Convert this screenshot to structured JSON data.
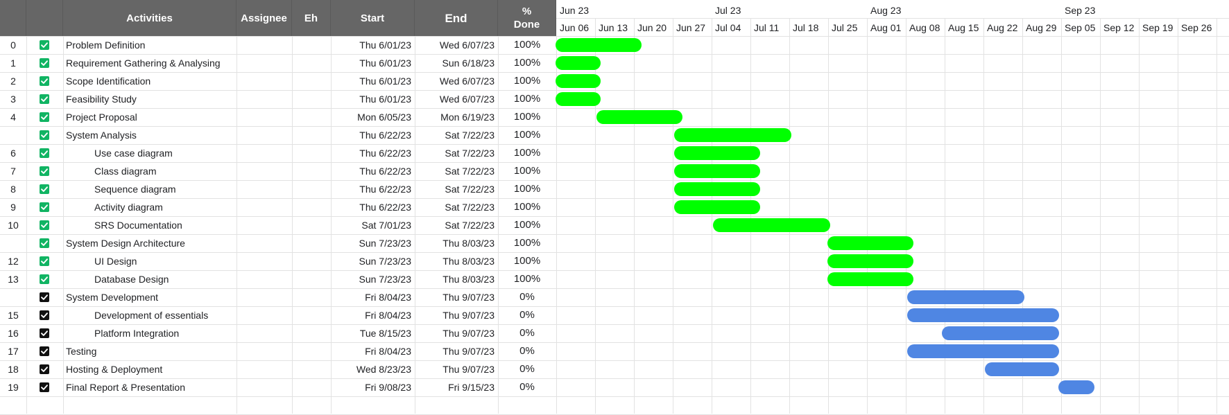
{
  "header": {
    "activities": "Activities",
    "assignee": "Assignee",
    "eh": "Eh",
    "start": "Start",
    "end": "End",
    "pct_done": "%\nDone"
  },
  "timeline": {
    "months": [
      "Jun 23",
      "Jul 23",
      "Aug 23",
      "Sep 23"
    ],
    "month_week_index": [
      0,
      4,
      8,
      13
    ],
    "weeks": [
      "Jun 06",
      "Jun 13",
      "Jun 20",
      "Jun 27",
      "Jul 04",
      "Jul 11",
      "Jul 18",
      "Jul 25",
      "Aug 01",
      "Aug 08",
      "Aug 15",
      "Aug 22",
      "Aug 29",
      "Sep 05",
      "Sep 12",
      "Sep 19",
      "Sep 26"
    ]
  },
  "colors": {
    "done_bar": "#00ff00",
    "todo_bar": "#4f86e3",
    "check_done": "#11b463",
    "check_todo": "#111111",
    "header_bg": "#666666"
  },
  "tasks": [
    {
      "no": "0",
      "name": "Problem Definition",
      "indent": false,
      "start": "Thu 6/01/23",
      "end": "Wed 6/07/23",
      "pct": "100%",
      "done": true,
      "bar": {
        "from": 0,
        "to": 2.2
      }
    },
    {
      "no": "1",
      "name": "Requirement Gathering & Analysing",
      "indent": false,
      "start": "Thu 6/01/23",
      "end": "Sun 6/18/23",
      "pct": "100%",
      "done": true,
      "bar": {
        "from": 0,
        "to": 1.15
      }
    },
    {
      "no": "2",
      "name": "Scope Identification",
      "indent": false,
      "start": "Thu 6/01/23",
      "end": "Wed 6/07/23",
      "pct": "100%",
      "done": true,
      "bar": {
        "from": 0,
        "to": 1.15
      }
    },
    {
      "no": "3",
      "name": "Feasibility Study",
      "indent": false,
      "start": "Thu 6/01/23",
      "end": "Wed 6/07/23",
      "pct": "100%",
      "done": true,
      "bar": {
        "from": 0,
        "to": 1.15
      }
    },
    {
      "no": "4",
      "name": "Project Proposal",
      "indent": false,
      "start": "Mon 6/05/23",
      "end": "Mon 6/19/23",
      "pct": "100%",
      "done": true,
      "bar": {
        "from": 1.05,
        "to": 3.25
      }
    },
    {
      "no": "",
      "name": "System Analysis",
      "indent": false,
      "start": "Thu 6/22/23",
      "end": "Sat 7/22/23",
      "pct": "100%",
      "done": true,
      "bar": {
        "from": 3.05,
        "to": 6.05
      }
    },
    {
      "no": "6",
      "name": "Use case diagram",
      "indent": true,
      "start": "Thu 6/22/23",
      "end": "Sat 7/22/23",
      "pct": "100%",
      "done": true,
      "bar": {
        "from": 3.05,
        "to": 5.25
      }
    },
    {
      "no": "7",
      "name": "Class diagram",
      "indent": true,
      "start": "Thu 6/22/23",
      "end": "Sat 7/22/23",
      "pct": "100%",
      "done": true,
      "bar": {
        "from": 3.05,
        "to": 5.25
      }
    },
    {
      "no": "8",
      "name": "Sequence diagram",
      "indent": true,
      "start": "Thu 6/22/23",
      "end": "Sat 7/22/23",
      "pct": "100%",
      "done": true,
      "bar": {
        "from": 3.05,
        "to": 5.25
      }
    },
    {
      "no": "9",
      "name": "Activity diagram",
      "indent": true,
      "start": "Thu 6/22/23",
      "end": "Sat 7/22/23",
      "pct": "100%",
      "done": true,
      "bar": {
        "from": 3.05,
        "to": 5.25
      }
    },
    {
      "no": "10",
      "name": "SRS Documentation",
      "indent": true,
      "start": "Sat 7/01/23",
      "end": "Sat 7/22/23",
      "pct": "100%",
      "done": true,
      "bar": {
        "from": 4.05,
        "to": 7.05
      }
    },
    {
      "no": "",
      "name": "System Design Architecture",
      "indent": false,
      "start": "Sun 7/23/23",
      "end": "Thu 8/03/23",
      "pct": "100%",
      "done": true,
      "bar": {
        "from": 7.0,
        "to": 9.2
      }
    },
    {
      "no": "12",
      "name": "UI Design",
      "indent": true,
      "start": "Sun 7/23/23",
      "end": "Thu 8/03/23",
      "pct": "100%",
      "done": true,
      "bar": {
        "from": 7.0,
        "to": 9.2
      }
    },
    {
      "no": "13",
      "name": "Database Design",
      "indent": true,
      "start": "Sun 7/23/23",
      "end": "Thu 8/03/23",
      "pct": "100%",
      "done": true,
      "bar": {
        "from": 7.0,
        "to": 9.2
      }
    },
    {
      "no": "",
      "name": "System Development",
      "indent": false,
      "start": "Fri 8/04/23",
      "end": "Thu 9/07/23",
      "pct": "0%",
      "done": false,
      "bar": {
        "from": 9.05,
        "to": 12.05
      }
    },
    {
      "no": "15",
      "name": "Development of essentials",
      "indent": true,
      "start": "Fri 8/04/23",
      "end": "Thu 9/07/23",
      "pct": "0%",
      "done": false,
      "bar": {
        "from": 9.05,
        "to": 12.95
      }
    },
    {
      "no": "16",
      "name": "Platform Integration",
      "indent": true,
      "start": "Tue 8/15/23",
      "end": "Thu 9/07/23",
      "pct": "0%",
      "done": false,
      "bar": {
        "from": 9.95,
        "to": 12.95
      }
    },
    {
      "no": "17",
      "name": "Testing",
      "indent": false,
      "start": "Fri 8/04/23",
      "end": "Thu 9/07/23",
      "pct": "0%",
      "done": false,
      "bar": {
        "from": 9.05,
        "to": 12.95
      }
    },
    {
      "no": "18",
      "name": "Hosting & Deployment",
      "indent": false,
      "start": "Wed 8/23/23",
      "end": "Thu 9/07/23",
      "pct": "0%",
      "done": false,
      "bar": {
        "from": 11.05,
        "to": 12.95
      }
    },
    {
      "no": "19",
      "name": "Final Report & Presentation",
      "indent": false,
      "start": "Fri 9/08/23",
      "end": "Fri 9/15/23",
      "pct": "0%",
      "done": false,
      "bar": {
        "from": 12.95,
        "to": 13.85
      }
    }
  ]
}
